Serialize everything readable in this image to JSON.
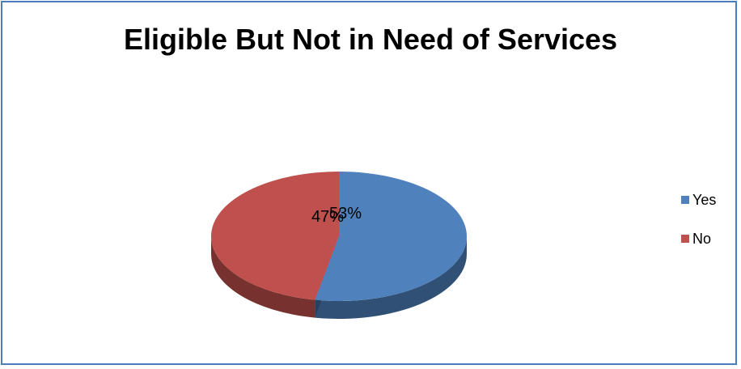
{
  "chart_data": {
    "type": "pie",
    "title": "Eligible But Not in Need of Services",
    "categories": [
      "Yes",
      "No"
    ],
    "values": [
      53,
      47
    ],
    "labels": [
      "53%",
      "47%"
    ],
    "colors": [
      "#4f81bd",
      "#c0504d"
    ],
    "legend_position": "right"
  }
}
